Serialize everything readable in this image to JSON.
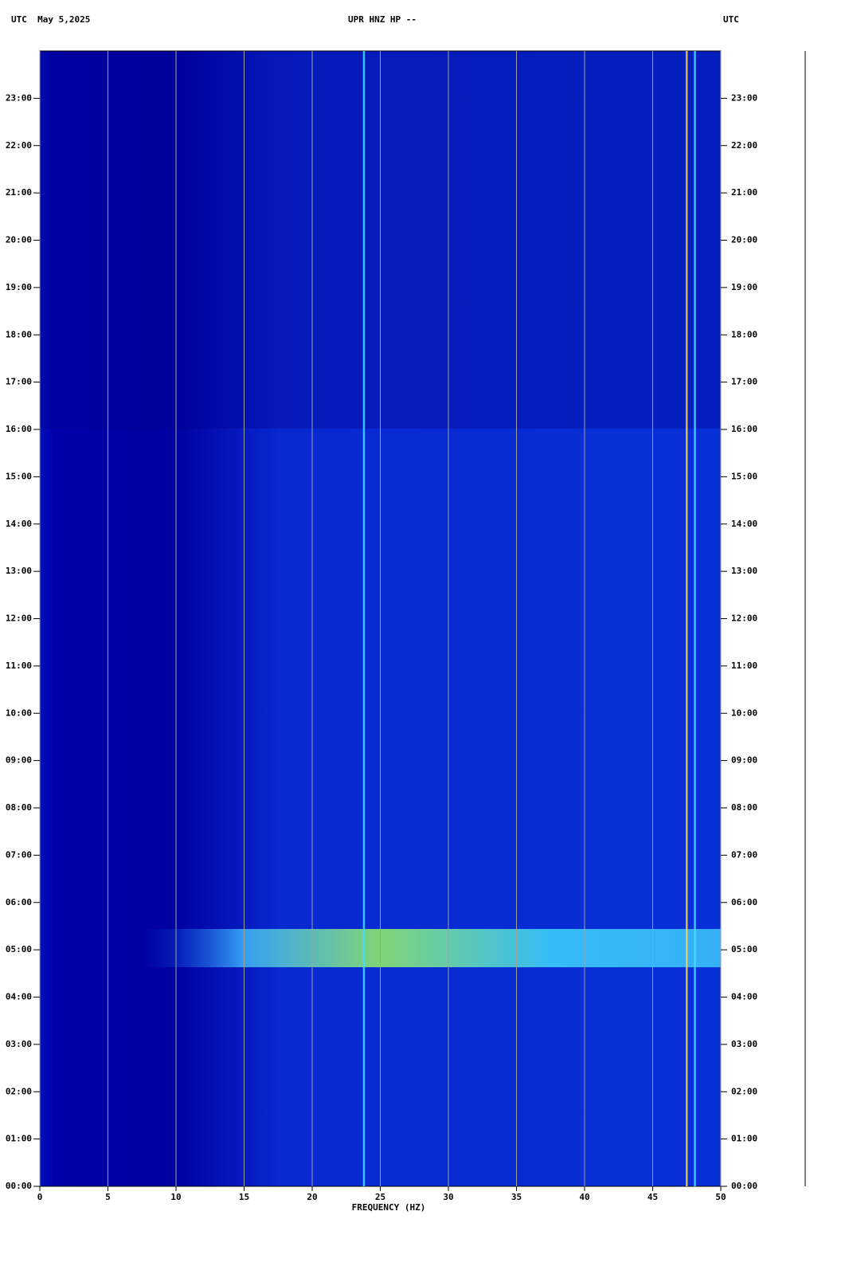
{
  "chart_data": {
    "type": "spectrogram",
    "title": "UPR HNZ HP --",
    "left_header": "UTC  May 5,2025",
    "right_header": "UTC",
    "xlabel": "FREQUENCY (HZ)",
    "xlim": [
      0,
      50
    ],
    "xticks": [
      0,
      5,
      10,
      15,
      20,
      25,
      30,
      35,
      40,
      45,
      50
    ],
    "ylim": [
      0,
      24
    ],
    "yticks": [
      {
        "value": 0,
        "label": "00:00"
      },
      {
        "value": 1,
        "label": "01:00"
      },
      {
        "value": 2,
        "label": "02:00"
      },
      {
        "value": 3,
        "label": "03:00"
      },
      {
        "value": 4,
        "label": "04:00"
      },
      {
        "value": 5,
        "label": "05:00"
      },
      {
        "value": 6,
        "label": "06:00"
      },
      {
        "value": 7,
        "label": "07:00"
      },
      {
        "value": 8,
        "label": "08:00"
      },
      {
        "value": 9,
        "label": "09:00"
      },
      {
        "value": 10,
        "label": "10:00"
      },
      {
        "value": 11,
        "label": "11:00"
      },
      {
        "value": 12,
        "label": "12:00"
      },
      {
        "value": 13,
        "label": "13:00"
      },
      {
        "value": 14,
        "label": "14:00"
      },
      {
        "value": 15,
        "label": "15:00"
      },
      {
        "value": 16,
        "label": "16:00"
      },
      {
        "value": 17,
        "label": "17:00"
      },
      {
        "value": 18,
        "label": "18:00"
      },
      {
        "value": 19,
        "label": "19:00"
      },
      {
        "value": 20,
        "label": "20:00"
      },
      {
        "value": 21,
        "label": "21:00"
      },
      {
        "value": 22,
        "label": "22:00"
      },
      {
        "value": 23,
        "label": "23:00"
      }
    ],
    "grid": true,
    "lines": [
      {
        "x": 23.8,
        "color": "#40e0ff"
      },
      {
        "x": 47.5,
        "color": "#ffd040"
      },
      {
        "x": 48.1,
        "color": "#40e0ff"
      }
    ]
  }
}
